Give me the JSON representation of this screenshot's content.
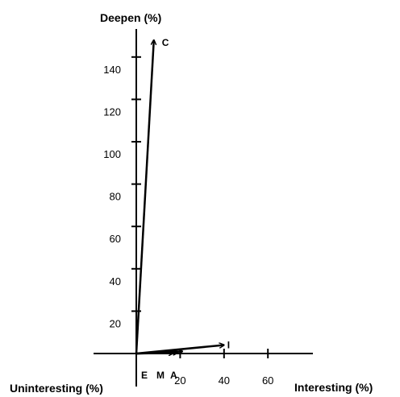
{
  "chart_data": {
    "type": "vector",
    "y_axis_label": "Deepen (%)",
    "x_axis_label_positive": "Interesting (%)",
    "x_axis_label_negative": "Uninteresting (%)",
    "y_ticks": [
      20,
      40,
      60,
      80,
      100,
      120,
      140
    ],
    "x_ticks": [
      20,
      40,
      60
    ],
    "vectors": [
      {
        "label": "C",
        "x": 8,
        "y": 148
      },
      {
        "label": "I",
        "x": 40,
        "y": 4
      },
      {
        "label": "A",
        "x": 21,
        "y": 1
      },
      {
        "label": "M",
        "x": 19,
        "y": 0.5
      },
      {
        "label": "E",
        "x": 17,
        "y": 0.3
      }
    ],
    "grid": false,
    "legend": "none"
  }
}
